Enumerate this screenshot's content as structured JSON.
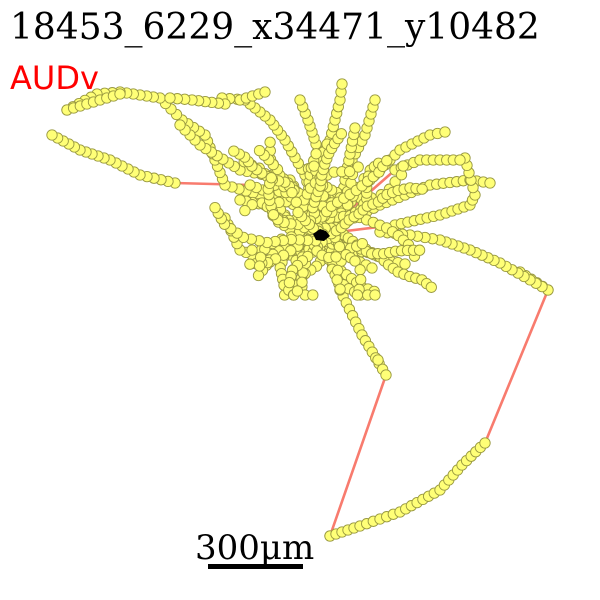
{
  "figure": {
    "title": "18453_6229_x34471_y10482",
    "region_label": "AUDv",
    "scale_bar_label": "300μm"
  },
  "colors": {
    "background": "#ffffff",
    "title_text": "#000000",
    "region_text": "#ff0000",
    "trace_line": "#f87b6e",
    "node_fill": "#ffff77",
    "node_stroke": "#999940",
    "soma": "#000000",
    "scale_bar": "#000000"
  }
}
